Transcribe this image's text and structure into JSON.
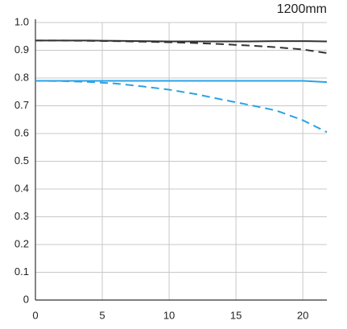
{
  "chart_data": {
    "type": "line",
    "title": "1200mm",
    "x": [
      0,
      2,
      4,
      6,
      8,
      10,
      12,
      14,
      16,
      18,
      20,
      21.8
    ],
    "series": [
      {
        "color": "#333333",
        "dashed": false,
        "values": [
          0.935,
          0.935,
          0.935,
          0.934,
          0.933,
          0.932,
          0.932,
          0.932,
          0.932,
          0.933,
          0.933,
          0.932
        ]
      },
      {
        "color": "#333333",
        "dashed": true,
        "values": [
          0.935,
          0.935,
          0.934,
          0.933,
          0.931,
          0.929,
          0.926,
          0.922,
          0.917,
          0.911,
          0.903,
          0.89
        ]
      },
      {
        "color": "#29a3e8",
        "dashed": false,
        "values": [
          0.79,
          0.79,
          0.79,
          0.79,
          0.79,
          0.79,
          0.79,
          0.79,
          0.79,
          0.79,
          0.79,
          0.785
        ]
      },
      {
        "color": "#29a3e8",
        "dashed": true,
        "values": [
          0.79,
          0.789,
          0.786,
          0.78,
          0.77,
          0.758,
          0.742,
          0.722,
          0.703,
          0.683,
          0.648,
          0.605
        ]
      }
    ],
    "xlim": [
      0,
      21.8
    ],
    "xticks": [
      0,
      5,
      10,
      15,
      20
    ],
    "ylim": [
      0,
      1
    ],
    "yticks": [
      0,
      0.1,
      0.2,
      0.3,
      0.4,
      0.5,
      0.6,
      0.7,
      0.8,
      0.9,
      {
        "value": 1,
        "label": "1.0"
      }
    ],
    "grid": true
  }
}
